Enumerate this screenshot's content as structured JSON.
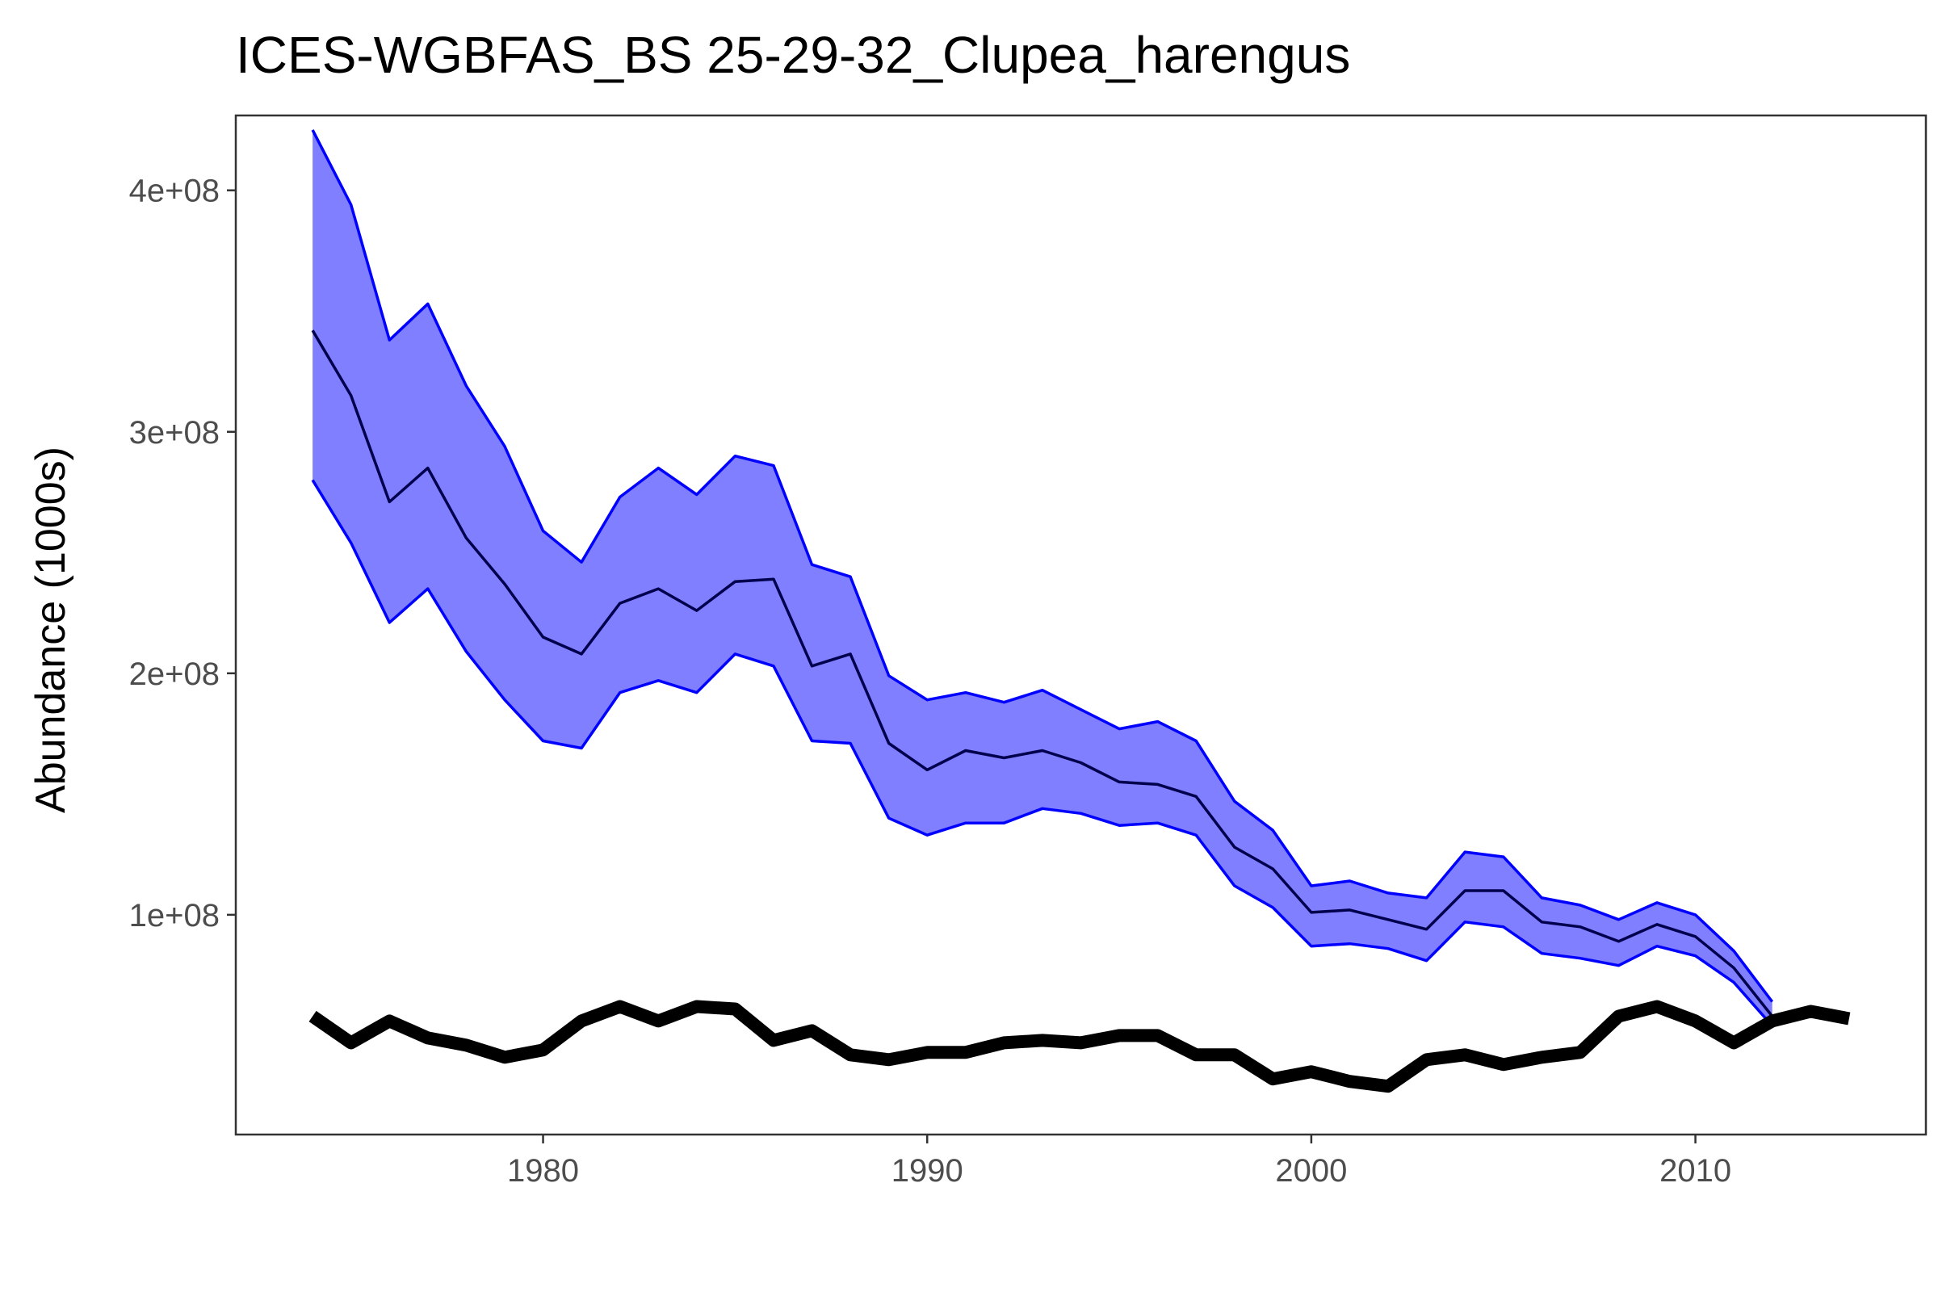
{
  "chart_data": {
    "type": "line",
    "title": "ICES-WGBFAS_BS 25-29-32_Clupea_harengus",
    "xlabel": "",
    "ylabel": "Abundance (1000s)",
    "xlim": [
      1972,
      2016
    ],
    "ylim": [
      9000000,
      431000000
    ],
    "grid": false,
    "legend": "none",
    "x_ticks": [
      1980,
      1990,
      2000,
      2010
    ],
    "x_tick_labels": [
      "1980",
      "1990",
      "2000",
      "2010"
    ],
    "y_ticks": [
      100000000,
      200000000,
      300000000,
      400000000
    ],
    "y_tick_labels": [
      "1e+08",
      "2e+08",
      "3e+08",
      "4e+08"
    ],
    "colors": {
      "ribbon_fill": "#7f7fff",
      "ribbon_edge": "#0000ff",
      "estimate_line": "#00004d",
      "observed_line": "#000000",
      "axis": "#333333",
      "tick": "#333333"
    },
    "x": [
      1974,
      1975,
      1976,
      1977,
      1978,
      1979,
      1980,
      1981,
      1982,
      1983,
      1984,
      1985,
      1986,
      1987,
      1988,
      1989,
      1990,
      1991,
      1992,
      1993,
      1994,
      1995,
      1996,
      1997,
      1998,
      1999,
      2000,
      2001,
      2002,
      2003,
      2004,
      2005,
      2006,
      2007,
      2008,
      2009,
      2010,
      2011,
      2012,
      2013,
      2014
    ],
    "series": [
      {
        "values": [
          342000000,
          315000000,
          271000000,
          285000000,
          256000000,
          237000000,
          215000000,
          208000000,
          229000000,
          235000000,
          226000000,
          238000000,
          239000000,
          203000000,
          208000000,
          171000000,
          160000000,
          168000000,
          165000000,
          168000000,
          163000000,
          155000000,
          154000000,
          149000000,
          128000000,
          119000000,
          101000000,
          102000000,
          98000000,
          94000000,
          110000000,
          110000000,
          97000000,
          95000000,
          89000000,
          96000000,
          91000000,
          78000000,
          58000000,
          null,
          null
        ]
      },
      {
        "values": [
          425000000,
          394000000,
          338000000,
          353000000,
          319000000,
          294000000,
          259000000,
          246000000,
          273000000,
          285000000,
          274000000,
          290000000,
          286000000,
          245000000,
          240000000,
          199000000,
          189000000,
          192000000,
          188000000,
          193000000,
          185000000,
          177000000,
          180000000,
          172000000,
          147000000,
          135000000,
          112000000,
          114000000,
          109000000,
          107000000,
          126000000,
          124000000,
          107000000,
          104000000,
          98000000,
          105000000,
          100000000,
          85000000,
          64000000,
          null,
          null
        ]
      },
      {
        "values": [
          280000000,
          254000000,
          221000000,
          235000000,
          209000000,
          189000000,
          172000000,
          169000000,
          192000000,
          197000000,
          192000000,
          208000000,
          203000000,
          172000000,
          171000000,
          140000000,
          133000000,
          138000000,
          138000000,
          144000000,
          142000000,
          137000000,
          138000000,
          133000000,
          112000000,
          103000000,
          87000000,
          88000000,
          86000000,
          81000000,
          97000000,
          95000000,
          84000000,
          82000000,
          79000000,
          87000000,
          83000000,
          72000000,
          54000000,
          null,
          null
        ]
      },
      {
        "values": [
          58000000,
          47000000,
          56000000,
          49000000,
          46000000,
          41000000,
          44000000,
          56000000,
          62000000,
          56000000,
          62000000,
          61000000,
          48000000,
          52000000,
          42000000,
          40000000,
          43000000,
          43000000,
          47000000,
          48000000,
          47000000,
          50000000,
          50000000,
          42000000,
          42000000,
          32000000,
          35000000,
          31000000,
          29000000,
          40000000,
          42000000,
          38000000,
          41000000,
          43000000,
          58000000,
          62000000,
          56000000,
          47000000,
          56000000,
          60000000,
          57000000
        ]
      }
    ]
  }
}
